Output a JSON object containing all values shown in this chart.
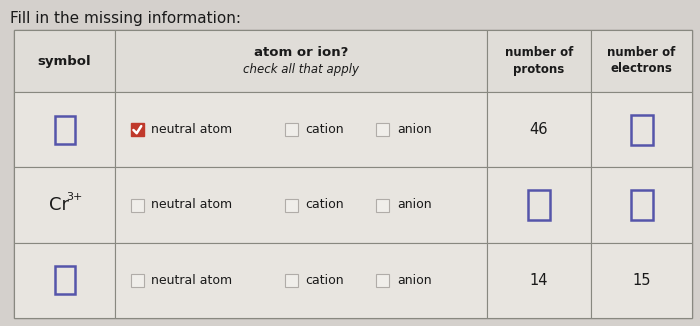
{
  "title": "Fill in the missing information:",
  "bg_color": "#d4d0cc",
  "table_bg": "#e8e5e0",
  "cell_bg": "#e8e5e0",
  "header_bg": "#e0ddd8",
  "rows": [
    {
      "symbol_text": "",
      "symbol_is_blank_box": true,
      "neutral_checked": true,
      "cation_checked": false,
      "anion_checked": false,
      "protons_text": "46",
      "protons_is_blank_box": false,
      "electrons_is_blank_box": true,
      "electrons_text": ""
    },
    {
      "symbol_text": "Cr",
      "symbol_superscript": "3+",
      "symbol_is_blank_box": false,
      "neutral_checked": false,
      "cation_checked": false,
      "anion_checked": false,
      "protons_text": "",
      "protons_is_blank_box": true,
      "electrons_is_blank_box": true,
      "electrons_text": ""
    },
    {
      "symbol_text": "",
      "symbol_is_blank_box": true,
      "neutral_checked": false,
      "cation_checked": false,
      "anion_checked": false,
      "protons_text": "14",
      "protons_is_blank_box": false,
      "electrons_is_blank_box": false,
      "electrons_text": "15"
    }
  ],
  "checkbox_unchecked_face": "#f0eeea",
  "checkbox_unchecked_edge": "#b0aca8",
  "checkbox_checked_face": "#c0392b",
  "checkbox_checked_edge": "#c0392b",
  "blank_box_color": "#5555aa",
  "text_color": "#1a1a1a",
  "grid_color": "#888880"
}
